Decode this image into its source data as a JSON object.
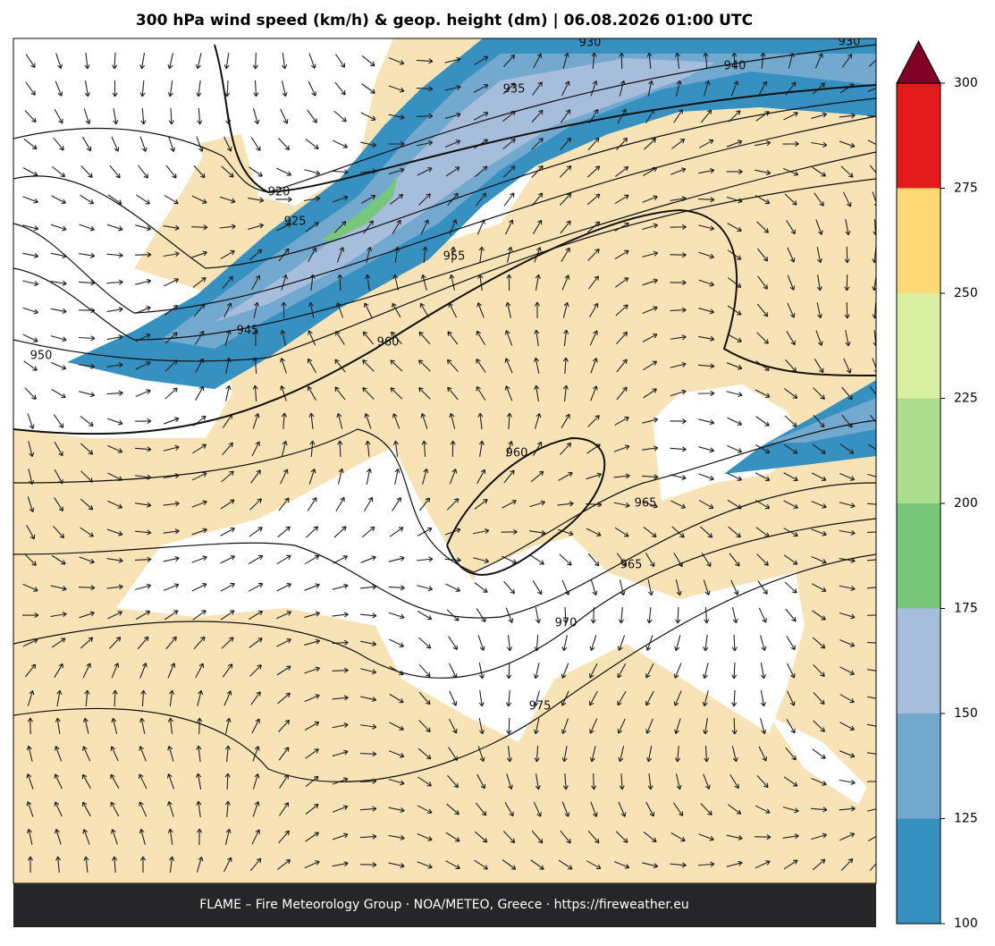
{
  "title": "300 hPa wind speed (km/h) & geop. height (dm)  |  06.08.2026 01:00 UTC",
  "footer": "FLAME – Fire Meteorology Group · NOA/METEO, Greece · https://fireweather.eu",
  "contour_labels": [
    "930",
    "935",
    "930",
    "940",
    "920",
    "925",
    "945",
    "950",
    "955",
    "960",
    "960",
    "965",
    "965",
    "970",
    "975"
  ],
  "colorbar": {
    "ticks": [
      100,
      125,
      150,
      175,
      200,
      225,
      250,
      275,
      300
    ],
    "colors": [
      "#3690c0",
      "#74a9cf",
      "#a6bddb",
      "#78c679",
      "#addd8e",
      "#d9f0a3",
      "#fed976",
      "#e31a1c"
    ],
    "extend_color": "#800026"
  }
}
